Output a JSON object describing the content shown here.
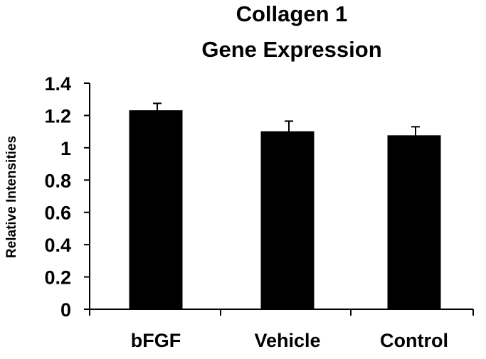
{
  "chart_data": {
    "type": "bar",
    "title": [
      "Collagen 1",
      "Gene Expression"
    ],
    "xlabel": "",
    "ylabel": "Relative Intensities",
    "categories": [
      "bFGF",
      "Vehicle",
      "Control"
    ],
    "values": [
      1.23,
      1.1,
      1.075
    ],
    "error": [
      0.045,
      0.065,
      0.055
    ],
    "ylim": [
      0,
      1.4
    ],
    "yticks": [
      "0",
      "0.2",
      "0.4",
      "0.6",
      "0.8",
      "1",
      "1.2",
      "1.4"
    ],
    "grid": false,
    "legend": "none",
    "bar_color": "#000000"
  }
}
